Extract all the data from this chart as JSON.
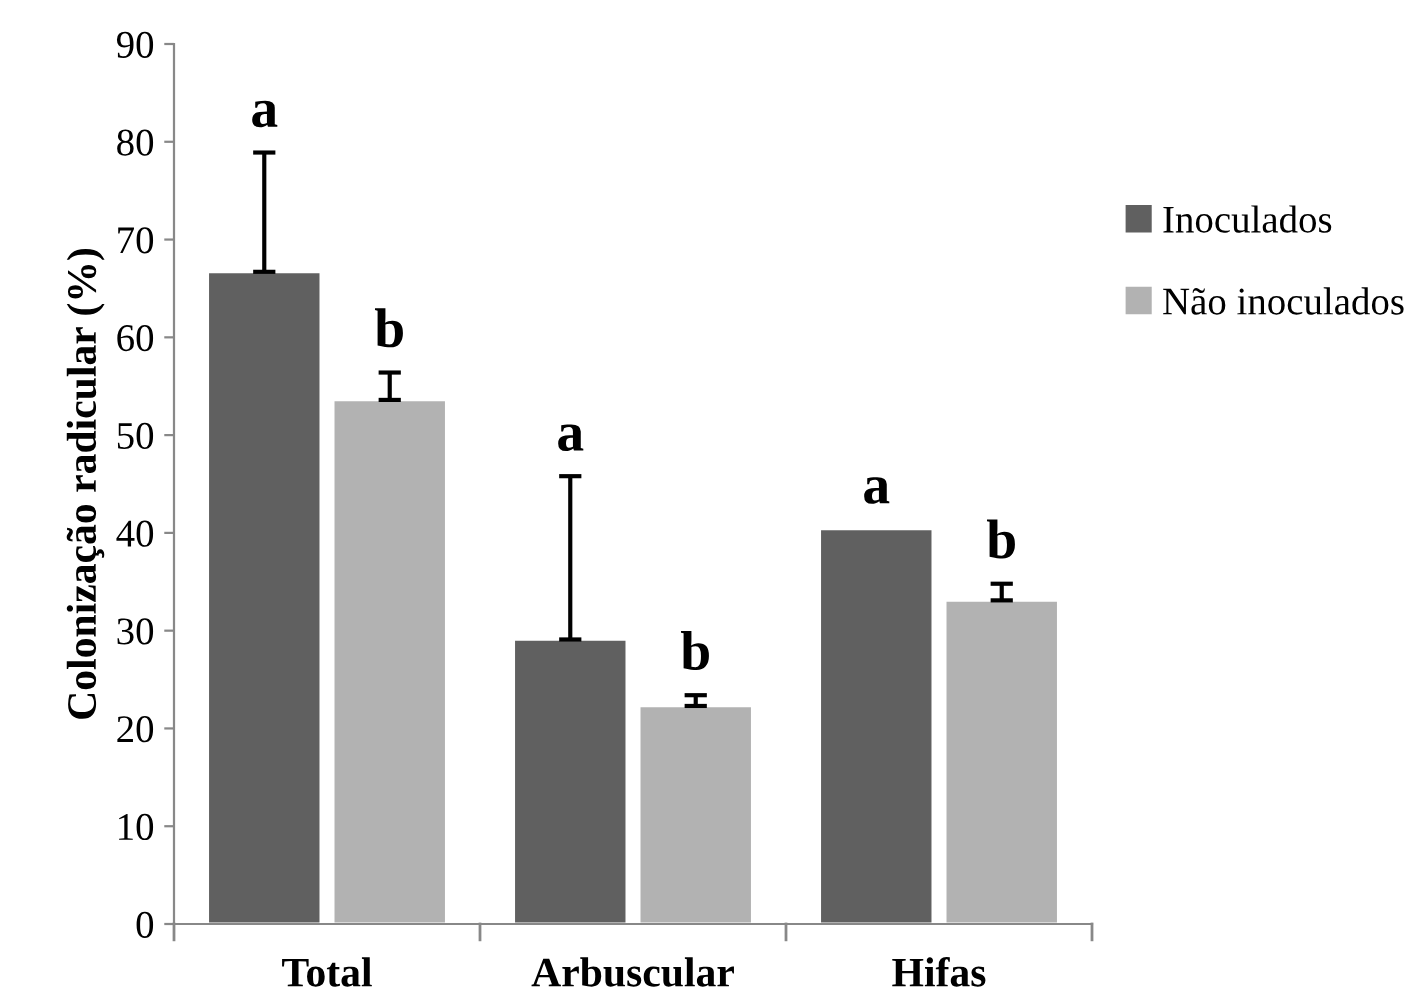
{
  "chart_data": {
    "type": "bar",
    "ylabel": "Colonização radicular (%)",
    "categories": [
      "Total",
      "Arbuscular",
      "Hifas"
    ],
    "series": [
      {
        "name": "Inoculados",
        "color": "#606060",
        "values": [
          66.7,
          29.1,
          40.4
        ],
        "errors": [
          12.2,
          16.7,
          null
        ]
      },
      {
        "name": "Não inoculados",
        "color": "#b2b2b2",
        "values": [
          53.6,
          22.3,
          33.1
        ],
        "errors": [
          2.8,
          1.1,
          1.7
        ]
      }
    ],
    "annotations": [
      "a",
      "a",
      "a",
      "b",
      "b",
      "b"
    ],
    "ylim": [
      0,
      90
    ],
    "yticks": [
      0,
      10,
      20,
      30,
      40,
      50,
      60,
      70,
      80,
      90
    ],
    "grid": false,
    "legend": "right"
  }
}
